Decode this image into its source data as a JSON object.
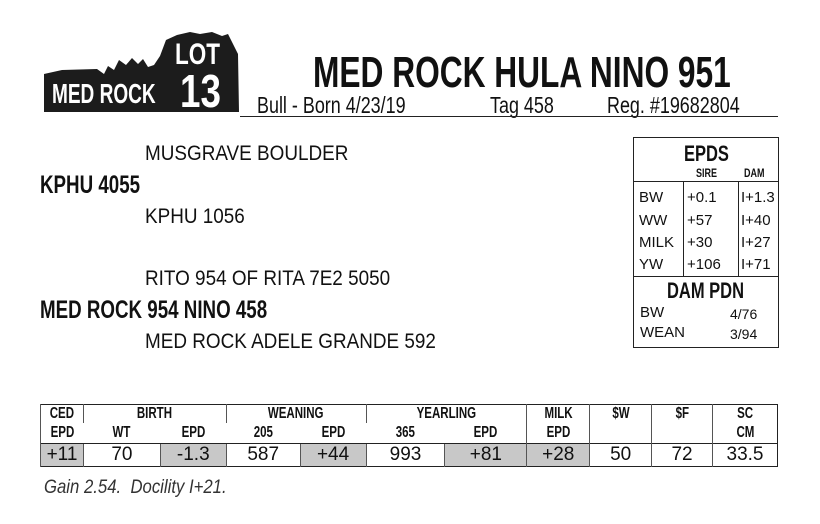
{
  "logo": {
    "brand": "MED ROCK",
    "lot_label": "LOT",
    "lot_number": "13"
  },
  "title": "MED ROCK HULA NINO 951",
  "subtitle": {
    "sex_born": "Bull - Born 4/23/19",
    "tag": "Tag 458",
    "reg": "Reg. #19682804"
  },
  "pedigree": {
    "sire_sire": "MUSGRAVE BOULDER",
    "sire": "KPHU 4055",
    "sire_dam": "KPHU 1056",
    "dam_sire": "RITO 954 OF RITA 7E2 5050",
    "dam": "MED ROCK 954 NINO 458",
    "dam_dam": "MED ROCK ADELE GRANDE 592"
  },
  "epds": {
    "title": "EPDS",
    "col_sire": "SIRE",
    "col_dam": "DAM",
    "rows": [
      {
        "trait": "BW",
        "sire": "+0.1",
        "dam": "I+1.3"
      },
      {
        "trait": "WW",
        "sire": "+57",
        "dam": "I+40"
      },
      {
        "trait": "MILK",
        "sire": "+30",
        "dam": "I+27"
      },
      {
        "trait": "YW",
        "sire": "+106",
        "dam": "I+71"
      }
    ],
    "pdn_title": "DAM PDN",
    "pdn": [
      {
        "label": "BW",
        "value": "4/76"
      },
      {
        "label": "WEAN",
        "value": "3/94"
      }
    ]
  },
  "perf": {
    "headers": {
      "ced": "CED",
      "ced2": "EPD",
      "birth": "BIRTH",
      "wt": "WT",
      "bepd": "EPD",
      "weaning": "WEANING",
      "w205": "205",
      "wepd": "EPD",
      "yearling": "YEARLING",
      "y365": "365",
      "yepd": "EPD",
      "milk": "MILK",
      "milk2": "EPD",
      "sw": "$W",
      "sf": "$F",
      "sc": "SC",
      "cm": "CM"
    },
    "values": [
      "+11",
      "70",
      "-1.3",
      "587",
      "+44",
      "993",
      "+81",
      "+28",
      "50",
      "72",
      "33.5"
    ]
  },
  "note": "Gain 2.54.  Docility I+21."
}
